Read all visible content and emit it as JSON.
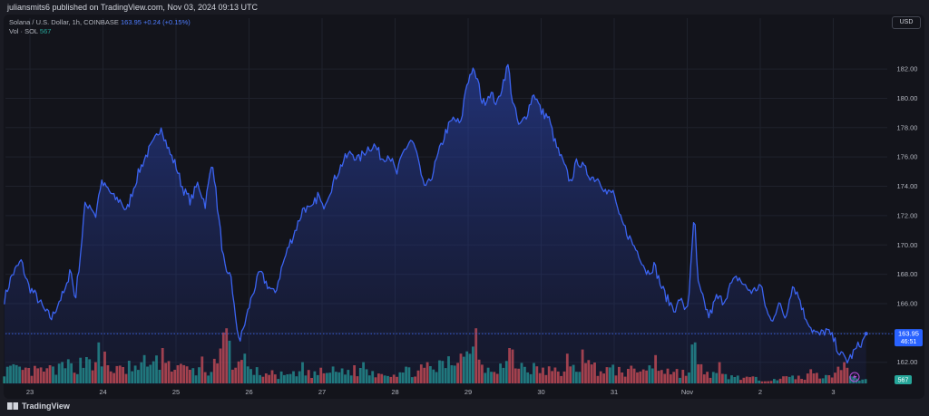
{
  "header": {
    "published": "juliansmits6 published on TradingView.com, Nov 03, 2024 09:13 UTC"
  },
  "legend": {
    "symbol": "Solana / U.S. Dollar, 1h, COINBASE",
    "price": "163.95",
    "change": "+0.24 (+0.15%)",
    "vol_label": "Vol · SOL",
    "vol_value": "567"
  },
  "currency_button": "USD",
  "footer": {
    "logo_text": "TradingView"
  },
  "colors": {
    "line": "#3b63f0",
    "up": "#26a69a",
    "down": "#ef5350",
    "bg": "#13141b"
  },
  "chart_data": {
    "type": "area",
    "title": "",
    "xlabel": "",
    "ylabel": "",
    "ylim": [
      160.5,
      184.6
    ],
    "yticks": [
      "182.00",
      "180.00",
      "178.00",
      "176.00",
      "174.00",
      "172.00",
      "170.00",
      "168.00",
      "166.00",
      "164.00",
      "162.00"
    ],
    "xticks": [
      {
        "label": "23",
        "day": 0
      },
      {
        "label": "24",
        "day": 1
      },
      {
        "label": "25",
        "day": 2
      },
      {
        "label": "26",
        "day": 3
      },
      {
        "label": "27",
        "day": 4
      },
      {
        "label": "28",
        "day": 5
      },
      {
        "label": "29",
        "day": 6
      },
      {
        "label": "30",
        "day": 7
      },
      {
        "label": "31",
        "day": 8
      },
      {
        "label": "Nov",
        "day": 9
      },
      {
        "label": "2",
        "day": 10
      },
      {
        "label": "3",
        "day": 11
      }
    ],
    "last_price_label": "163.95",
    "countdown_label": "46:51",
    "volume_last_label": "567",
    "price_key": [
      [
        -0.35,
        166.3
      ],
      [
        -0.25,
        167.9
      ],
      [
        -0.12,
        168.9
      ],
      [
        -0.02,
        167.2
      ],
      [
        0.1,
        166.4
      ],
      [
        0.2,
        165.5
      ],
      [
        0.3,
        165.0
      ],
      [
        0.4,
        166.2
      ],
      [
        0.5,
        167.0
      ],
      [
        0.55,
        168.6
      ],
      [
        0.62,
        166.2
      ],
      [
        0.7,
        169.8
      ],
      [
        0.75,
        172.6
      ],
      [
        0.82,
        172.8
      ],
      [
        0.9,
        172.0
      ],
      [
        0.97,
        174.2
      ],
      [
        1.07,
        173.8
      ],
      [
        1.15,
        173.2
      ],
      [
        1.25,
        173.0
      ],
      [
        1.32,
        172.2
      ],
      [
        1.4,
        173.6
      ],
      [
        1.5,
        175.1
      ],
      [
        1.6,
        176.2
      ],
      [
        1.7,
        177.0
      ],
      [
        1.8,
        178.2
      ],
      [
        1.85,
        177.2
      ],
      [
        1.92,
        176.2
      ],
      [
        2.0,
        175.4
      ],
      [
        2.07,
        174.2
      ],
      [
        2.12,
        173.6
      ],
      [
        2.2,
        173.0
      ],
      [
        2.3,
        174.2
      ],
      [
        2.4,
        172.8
      ],
      [
        2.5,
        175.8
      ],
      [
        2.58,
        172.0
      ],
      [
        2.65,
        169.1
      ],
      [
        2.7,
        167.6
      ],
      [
        2.75,
        168.1
      ],
      [
        2.82,
        164.6
      ],
      [
        2.88,
        163.5
      ],
      [
        2.95,
        164.8
      ],
      [
        3.05,
        166.7
      ],
      [
        3.15,
        168.1
      ],
      [
        3.25,
        167.3
      ],
      [
        3.35,
        166.6
      ],
      [
        3.45,
        168.5
      ],
      [
        3.55,
        170.0
      ],
      [
        3.65,
        171.2
      ],
      [
        3.75,
        172.6
      ],
      [
        3.85,
        172.3
      ],
      [
        3.95,
        173.5
      ],
      [
        4.0,
        172.5
      ],
      [
        4.1,
        173.6
      ],
      [
        4.2,
        174.8
      ],
      [
        4.3,
        175.8
      ],
      [
        4.4,
        176.3
      ],
      [
        4.5,
        175.8
      ],
      [
        4.62,
        176.6
      ],
      [
        4.72,
        176.8
      ],
      [
        4.82,
        175.9
      ],
      [
        4.92,
        176.2
      ],
      [
        5.02,
        174.8
      ],
      [
        5.12,
        176.4
      ],
      [
        5.22,
        177.2
      ],
      [
        5.3,
        176.2
      ],
      [
        5.37,
        174.2
      ],
      [
        5.45,
        174.0
      ],
      [
        5.52,
        175.0
      ],
      [
        5.62,
        176.6
      ],
      [
        5.7,
        177.8
      ],
      [
        5.8,
        178.6
      ],
      [
        5.9,
        178.2
      ],
      [
        5.97,
        180.8
      ],
      [
        6.05,
        181.9
      ],
      [
        6.12,
        181.4
      ],
      [
        6.2,
        179.6
      ],
      [
        6.3,
        180.4
      ],
      [
        6.4,
        179.6
      ],
      [
        6.5,
        181.5
      ],
      [
        6.55,
        182.3
      ],
      [
        6.6,
        180.0
      ],
      [
        6.7,
        178.0
      ],
      [
        6.8,
        178.9
      ],
      [
        6.9,
        180.4
      ],
      [
        7.0,
        179.1
      ],
      [
        7.1,
        178.7
      ],
      [
        7.2,
        176.8
      ],
      [
        7.3,
        175.6
      ],
      [
        7.4,
        174.3
      ],
      [
        7.5,
        175.8
      ],
      [
        7.6,
        175.1
      ],
      [
        7.7,
        174.6
      ],
      [
        7.8,
        174.5
      ],
      [
        7.9,
        173.5
      ],
      [
        8.0,
        173.6
      ],
      [
        8.05,
        172.1
      ],
      [
        8.15,
        171.1
      ],
      [
        8.25,
        170.1
      ],
      [
        8.35,
        169.3
      ],
      [
        8.45,
        168.1
      ],
      [
        8.55,
        168.6
      ],
      [
        8.65,
        167.1
      ],
      [
        8.75,
        166.1
      ],
      [
        8.85,
        165.6
      ],
      [
        8.9,
        166.4
      ],
      [
        8.95,
        165.7
      ],
      [
        9.0,
        165.8
      ],
      [
        9.03,
        167.0
      ],
      [
        9.06,
        169.2
      ],
      [
        9.1,
        172.4
      ],
      [
        9.14,
        167.5
      ],
      [
        9.2,
        166.5
      ],
      [
        9.3,
        165.1
      ],
      [
        9.4,
        166.4
      ],
      [
        9.5,
        166.2
      ],
      [
        9.6,
        167.3
      ],
      [
        9.7,
        167.8
      ],
      [
        9.8,
        167.1
      ],
      [
        9.9,
        166.8
      ],
      [
        10.0,
        167.3
      ],
      [
        10.05,
        166.3
      ],
      [
        10.1,
        165.3
      ],
      [
        10.15,
        164.8
      ],
      [
        10.25,
        166.0
      ],
      [
        10.35,
        165.0
      ],
      [
        10.4,
        166.5
      ],
      [
        10.45,
        167.3
      ],
      [
        10.55,
        166.2
      ],
      [
        10.6,
        165.2
      ],
      [
        10.65,
        164.9
      ],
      [
        10.7,
        164.3
      ],
      [
        10.8,
        163.8
      ],
      [
        10.9,
        164.2
      ],
      [
        11.0,
        163.6
      ],
      [
        11.1,
        162.5
      ],
      [
        11.2,
        162.1
      ],
      [
        11.3,
        162.8
      ],
      [
        11.4,
        163.5
      ],
      [
        11.45,
        163.95
      ]
    ],
    "volume_key": [
      [
        -0.35,
        0.22
      ],
      [
        0.0,
        0.18
      ],
      [
        0.25,
        0.2
      ],
      [
        0.5,
        0.26
      ],
      [
        0.7,
        0.3
      ],
      [
        0.8,
        0.45
      ],
      [
        0.9,
        0.25
      ],
      [
        1.0,
        0.3
      ],
      [
        1.2,
        0.2
      ],
      [
        1.5,
        0.22
      ],
      [
        1.7,
        0.3
      ],
      [
        1.9,
        0.3
      ],
      [
        2.0,
        0.25
      ],
      [
        2.2,
        0.2
      ],
      [
        2.45,
        0.18
      ],
      [
        2.6,
        0.35
      ],
      [
        2.7,
        0.55
      ],
      [
        2.8,
        0.35
      ],
      [
        2.95,
        0.22
      ],
      [
        3.2,
        0.15
      ],
      [
        3.5,
        0.12
      ],
      [
        3.8,
        0.14
      ],
      [
        4.1,
        0.18
      ],
      [
        4.4,
        0.2
      ],
      [
        4.7,
        0.18
      ],
      [
        5.0,
        0.16
      ],
      [
        5.3,
        0.2
      ],
      [
        5.6,
        0.25
      ],
      [
        5.8,
        0.35
      ],
      [
        6.0,
        0.45
      ],
      [
        6.1,
        0.35
      ],
      [
        6.3,
        0.25
      ],
      [
        6.6,
        0.3
      ],
      [
        6.8,
        0.25
      ],
      [
        7.0,
        0.2
      ],
      [
        7.2,
        0.18
      ],
      [
        7.4,
        0.2
      ],
      [
        7.6,
        0.3
      ],
      [
        7.8,
        0.22
      ],
      [
        8.0,
        0.2
      ],
      [
        8.2,
        0.18
      ],
      [
        8.4,
        0.22
      ],
      [
        8.6,
        0.25
      ],
      [
        8.8,
        0.18
      ],
      [
        9.0,
        0.15
      ],
      [
        9.1,
        0.35
      ],
      [
        9.2,
        0.2
      ],
      [
        9.4,
        0.12
      ],
      [
        9.7,
        0.1
      ],
      [
        10.0,
        0.06
      ],
      [
        10.3,
        0.08
      ],
      [
        10.6,
        0.1
      ],
      [
        10.9,
        0.15
      ],
      [
        11.1,
        0.18
      ],
      [
        11.3,
        0.08
      ],
      [
        11.45,
        0.05
      ]
    ],
    "volume_spikes": [
      [
        0.4,
        0.28
      ],
      [
        0.93,
        0.58
      ],
      [
        1.03,
        0.45
      ],
      [
        1.35,
        0.32
      ],
      [
        1.55,
        0.4
      ],
      [
        1.8,
        0.5
      ],
      [
        2.35,
        0.38
      ],
      [
        2.65,
        0.72
      ],
      [
        2.68,
        0.78
      ],
      [
        2.95,
        0.42
      ],
      [
        3.75,
        0.3
      ],
      [
        4.55,
        0.3
      ],
      [
        5.9,
        0.42
      ],
      [
        6.05,
        0.52
      ],
      [
        6.1,
        0.78
      ],
      [
        6.55,
        0.5
      ],
      [
        6.62,
        0.48
      ],
      [
        7.35,
        0.42
      ],
      [
        7.55,
        0.48
      ],
      [
        8.55,
        0.4
      ],
      [
        9.05,
        0.55
      ],
      [
        9.12,
        0.58
      ],
      [
        9.45,
        0.3
      ],
      [
        10.7,
        0.2
      ],
      [
        11.15,
        0.3
      ],
      [
        11.2,
        0.22
      ]
    ]
  }
}
